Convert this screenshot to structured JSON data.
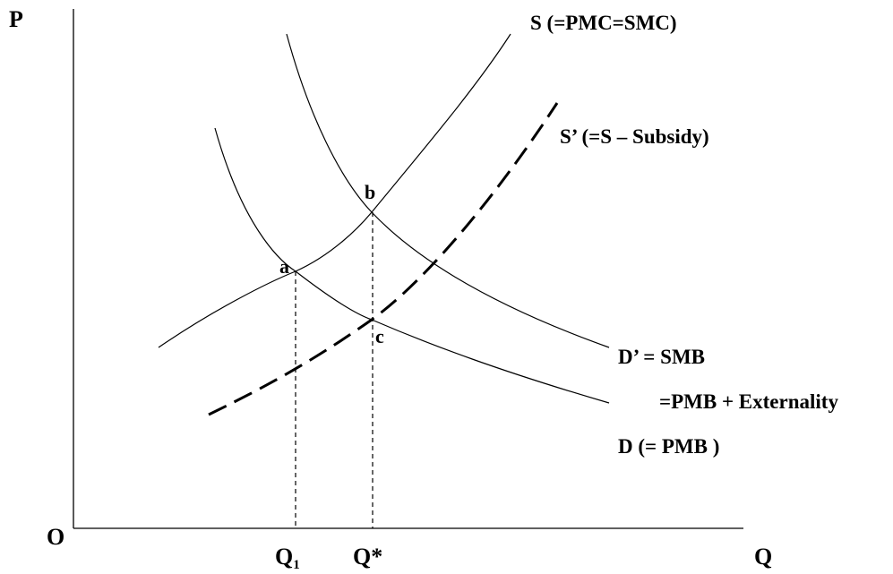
{
  "axes": {
    "y_label": "P",
    "x_label": "Q",
    "origin_label": "O"
  },
  "curves": {
    "supply_label": "S (=PMC=SMC)",
    "supply_subsidy_label": "S’ (=S – Subsidy)",
    "social_demand_label_line1": "D’ = SMB",
    "social_demand_label_line2": "=PMB + Externality",
    "private_demand_label": "D (= PMB )"
  },
  "points": {
    "a": "a",
    "b": "b",
    "c": "c"
  },
  "quantities": {
    "q1_main": "Q",
    "q1_subscript": "1",
    "q_star": "Q*"
  }
}
